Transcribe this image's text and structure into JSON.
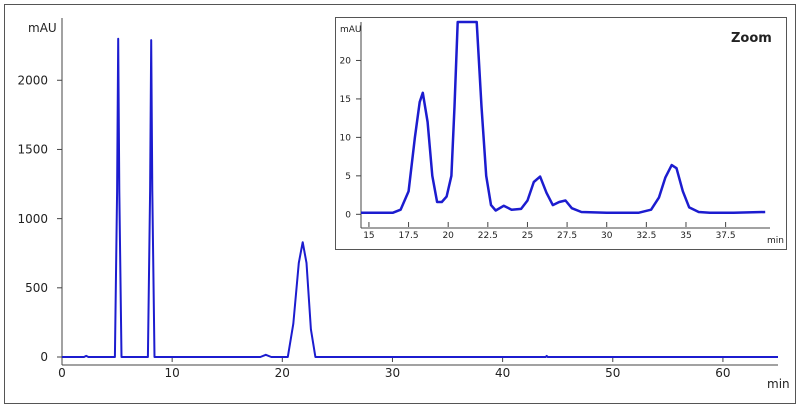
{
  "chart_data": [
    {
      "type": "line",
      "title": "",
      "xlabel": "min",
      "ylabel": "mAU",
      "xlim": [
        0,
        65
      ],
      "ylim": [
        0,
        2450
      ],
      "x_ticks": [
        0,
        10,
        20,
        30,
        40,
        50,
        60
      ],
      "y_ticks": [
        0,
        500,
        1000,
        1500,
        2000
      ],
      "grid": false,
      "series": [
        {
          "color": "#1c1ccf",
          "x": [
            0,
            2.0,
            2.2,
            2.4,
            4.8,
            5.0,
            5.1,
            5.2,
            5.4,
            7.8,
            8.0,
            8.1,
            8.2,
            8.4,
            18.0,
            18.5,
            19.0,
            20.5,
            21.0,
            21.5,
            21.85,
            22.2,
            22.6,
            23.0,
            25.0,
            43.9,
            44.0,
            44.1,
            65
          ],
          "values": [
            0,
            0,
            8,
            0,
            0,
            1200,
            2300,
            1200,
            0,
            0,
            1200,
            2290,
            1200,
            0,
            0,
            16,
            0,
            0,
            240,
            680,
            830,
            680,
            200,
            0,
            0,
            0,
            8,
            0,
            0
          ]
        }
      ]
    },
    {
      "type": "line",
      "title": "Zoom",
      "xlabel": "min",
      "ylabel": "mAU",
      "xlim": [
        14.5,
        40.3
      ],
      "ylim": [
        -1,
        25
      ],
      "x_ticks": [
        15,
        17.5,
        20,
        22.5,
        25,
        27.5,
        30,
        32.5,
        35,
        37.5
      ],
      "x_tick_labels": [
        "15",
        "17.5",
        "20",
        "22.5",
        "25",
        "27.5",
        "30",
        "32.5",
        "35",
        "37.5"
      ],
      "y_ticks": [
        0,
        5,
        10,
        15,
        20
      ],
      "grid": false,
      "series": [
        {
          "color": "#1c1ccf",
          "x": [
            14.5,
            16.5,
            17.0,
            17.5,
            17.9,
            18.2,
            18.4,
            18.7,
            19.0,
            19.3,
            19.6,
            19.9,
            20.2,
            20.4,
            20.6,
            21.0,
            21.8,
            22.1,
            22.4,
            22.7,
            23.0,
            23.5,
            24.0,
            24.6,
            25.0,
            25.4,
            25.8,
            26.2,
            26.6,
            27.0,
            27.4,
            27.8,
            28.4,
            30.0,
            32.0,
            32.8,
            33.3,
            33.7,
            34.1,
            34.4,
            34.8,
            35.2,
            35.8,
            36.5,
            38.0,
            40.0
          ],
          "values": [
            0.2,
            0.2,
            0.6,
            3.0,
            10.0,
            14.6,
            15.8,
            12.0,
            5.0,
            1.6,
            1.6,
            2.3,
            5.0,
            14.0,
            25.0,
            25.0,
            25.0,
            14.0,
            5.0,
            1.2,
            0.5,
            1.1,
            0.6,
            0.7,
            1.8,
            4.2,
            4.9,
            2.8,
            1.2,
            1.6,
            1.8,
            0.8,
            0.3,
            0.2,
            0.2,
            0.6,
            2.2,
            4.8,
            6.4,
            6.0,
            3.0,
            0.9,
            0.3,
            0.2,
            0.2,
            0.3
          ]
        }
      ]
    }
  ]
}
